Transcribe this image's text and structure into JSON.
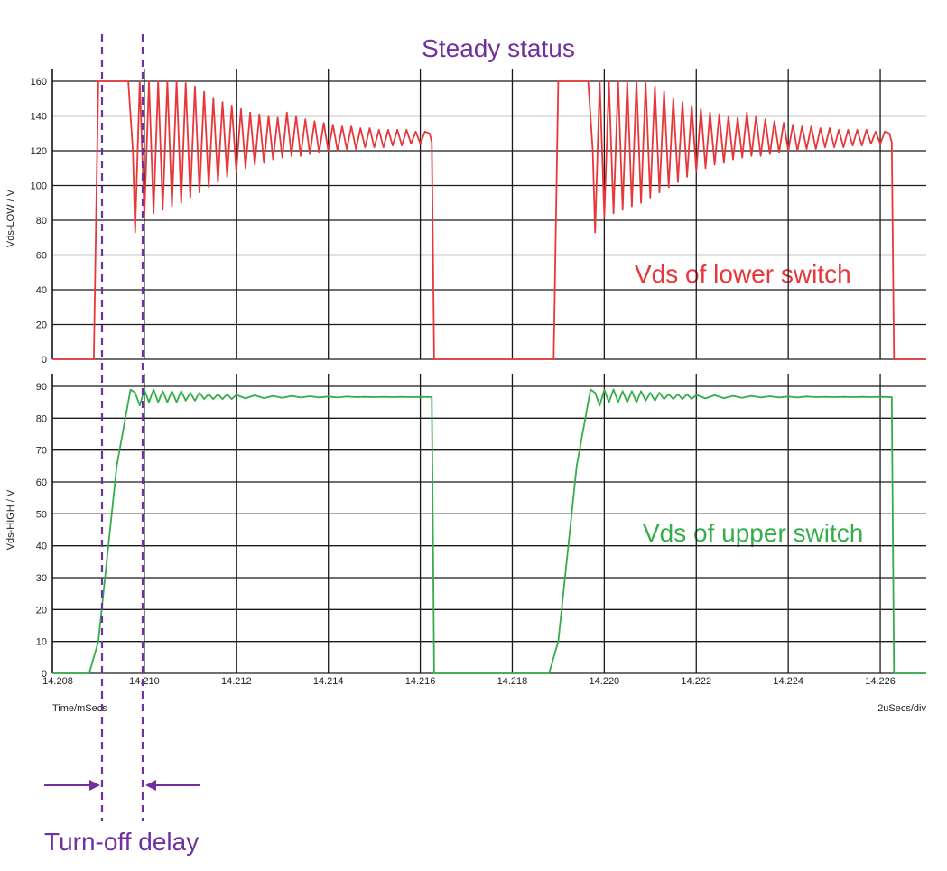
{
  "annotations": {
    "top": "Steady status",
    "bottom": "Turn-off delay",
    "lower_label": "Vds of lower switch",
    "upper_label": "Vds of upper switch"
  },
  "colors": {
    "lower": "#e8373a",
    "upper": "#34ad4a",
    "annotation": "#7030a0",
    "grid": "#1a1a1a"
  },
  "xaxis": {
    "label": "Time/mSecs",
    "right_label": "2uSecs/div",
    "range": [
      14.208,
      14.227
    ],
    "ticks": [
      "14.208",
      "14.210",
      "14.212",
      "14.214",
      "14.216",
      "14.218",
      "14.220",
      "14.222",
      "14.224",
      "14.226"
    ]
  },
  "chart_data": [
    {
      "type": "line",
      "ylabel": "Vds-LOW / V",
      "ylim": [
        0,
        165
      ],
      "yticks": [
        0,
        20,
        40,
        60,
        80,
        100,
        120,
        140,
        160
      ],
      "grid": true,
      "series": [
        {
          "name": "Vds of lower switch",
          "x": [
            14.208,
            14.2089,
            14.209,
            14.20965,
            14.20975,
            14.2098,
            14.2099,
            14.21,
            14.2101,
            14.2102,
            14.2103,
            14.2104,
            14.2105,
            14.2106,
            14.2107,
            14.2108,
            14.2109,
            14.211,
            14.2111,
            14.2112,
            14.2113,
            14.2114,
            14.2115,
            14.2116,
            14.2117,
            14.2118,
            14.2119,
            14.212,
            14.2121,
            14.2122,
            14.2123,
            14.2124,
            14.2125,
            14.2126,
            14.2127,
            14.2128,
            14.2129,
            14.213,
            14.2131,
            14.2132,
            14.2133,
            14.2134,
            14.2135,
            14.2136,
            14.2137,
            14.2138,
            14.2139,
            14.214,
            14.2141,
            14.2142,
            14.2143,
            14.2144,
            14.2145,
            14.2146,
            14.2147,
            14.2148,
            14.2149,
            14.215,
            14.2151,
            14.2152,
            14.2153,
            14.2154,
            14.2155,
            14.2156,
            14.2157,
            14.2158,
            14.2159,
            14.216,
            14.2161,
            14.2162,
            14.21625,
            14.2163,
            14.2164,
            14.2189,
            14.219,
            14.21965,
            14.21975,
            14.2198,
            14.2199,
            14.22,
            14.2201,
            14.2202,
            14.2203,
            14.2204,
            14.2205,
            14.2206,
            14.2207,
            14.2208,
            14.2209,
            14.221,
            14.2211,
            14.2212,
            14.2213,
            14.2214,
            14.2215,
            14.2216,
            14.2217,
            14.2218,
            14.2219,
            14.222,
            14.2221,
            14.2222,
            14.2223,
            14.2224,
            14.2225,
            14.2226,
            14.2227,
            14.2228,
            14.2229,
            14.223,
            14.2231,
            14.2232,
            14.2233,
            14.2234,
            14.2235,
            14.2236,
            14.2237,
            14.2238,
            14.2239,
            14.224,
            14.2241,
            14.2242,
            14.2243,
            14.2244,
            14.2245,
            14.2246,
            14.2247,
            14.2248,
            14.2249,
            14.225,
            14.2251,
            14.2252,
            14.2253,
            14.2254,
            14.2255,
            14.2256,
            14.2257,
            14.2258,
            14.2259,
            14.226,
            14.2261,
            14.2262,
            14.22625,
            14.2263,
            14.2264,
            14.227
          ],
          "y": [
            0,
            0,
            160,
            160,
            120,
            73,
            160,
            82,
            160,
            84,
            160,
            86,
            160,
            88,
            160,
            90,
            159,
            93,
            157,
            96,
            154,
            99,
            150,
            102,
            148,
            105,
            146,
            108,
            144,
            110,
            142,
            112,
            141,
            113,
            140,
            115,
            139,
            116,
            142,
            117,
            140,
            117,
            138,
            118,
            137,
            119,
            136,
            120,
            135,
            120,
            134,
            121,
            134,
            121,
            133,
            122,
            133,
            122,
            132,
            122,
            132,
            123,
            132,
            123,
            132,
            124,
            131,
            124,
            131,
            130,
            125,
            0,
            0,
            0,
            160,
            160,
            120,
            73,
            160,
            82,
            160,
            84,
            160,
            86,
            160,
            88,
            160,
            90,
            159,
            93,
            157,
            96,
            154,
            99,
            150,
            102,
            148,
            105,
            146,
            108,
            144,
            110,
            142,
            112,
            141,
            113,
            140,
            115,
            139,
            116,
            142,
            117,
            140,
            117,
            138,
            118,
            137,
            119,
            136,
            120,
            135,
            120,
            134,
            121,
            134,
            121,
            133,
            122,
            133,
            122,
            132,
            122,
            132,
            123,
            132,
            123,
            132,
            124,
            131,
            124,
            131,
            130,
            125,
            0,
            0,
            0
          ]
        }
      ]
    },
    {
      "type": "line",
      "ylabel": "Vds-HIGH / V",
      "ylim": [
        0,
        92
      ],
      "yticks": [
        0,
        10,
        20,
        30,
        40,
        50,
        60,
        70,
        80,
        90
      ],
      "grid": true,
      "series": [
        {
          "name": "Vds of upper switch",
          "x": [
            14.208,
            14.2088,
            14.209,
            14.2094,
            14.2097,
            14.2098,
            14.2099,
            14.21,
            14.2101,
            14.2102,
            14.2103,
            14.2104,
            14.2105,
            14.2106,
            14.2107,
            14.2108,
            14.2109,
            14.211,
            14.2111,
            14.2112,
            14.2113,
            14.2114,
            14.2115,
            14.2116,
            14.2117,
            14.2118,
            14.2119,
            14.212,
            14.2122,
            14.2124,
            14.2126,
            14.2128,
            14.213,
            14.2132,
            14.2134,
            14.2136,
            14.2138,
            14.214,
            14.2142,
            14.2144,
            14.2146,
            14.2148,
            14.215,
            14.2152,
            14.2154,
            14.2156,
            14.2158,
            14.216,
            14.21625,
            14.2163,
            14.2164,
            14.2188,
            14.219,
            14.2194,
            14.2197,
            14.2198,
            14.2199,
            14.22,
            14.2201,
            14.2202,
            14.2203,
            14.2204,
            14.2205,
            14.2206,
            14.2207,
            14.2208,
            14.2209,
            14.221,
            14.2211,
            14.2212,
            14.2213,
            14.2214,
            14.2215,
            14.2216,
            14.2217,
            14.2218,
            14.2219,
            14.222,
            14.2222,
            14.2224,
            14.2226,
            14.2228,
            14.223,
            14.2232,
            14.2234,
            14.2236,
            14.2238,
            14.224,
            14.2242,
            14.2244,
            14.2246,
            14.2248,
            14.225,
            14.2252,
            14.2254,
            14.2256,
            14.2258,
            14.226,
            14.22625,
            14.2263,
            14.2264,
            14.227
          ],
          "y": [
            0,
            0,
            10,
            65,
            89,
            88,
            84,
            89,
            85,
            89,
            85,
            88.5,
            85,
            88.5,
            85,
            88.5,
            85.5,
            88,
            85.5,
            88,
            86,
            87.5,
            86,
            87.5,
            86,
            87.5,
            86,
            87.3,
            86.2,
            87.2,
            86.3,
            87,
            86.4,
            87,
            86.5,
            86.9,
            86.5,
            86.8,
            86.5,
            86.8,
            86.6,
            86.7,
            86.6,
            86.7,
            86.6,
            86.7,
            86.6,
            86.7,
            86.6,
            0,
            0,
            0,
            10,
            65,
            89,
            88,
            84,
            89,
            85,
            89,
            85,
            88.5,
            85,
            88.5,
            85,
            88.5,
            85.5,
            88,
            85.5,
            88,
            86,
            87.5,
            86,
            87.5,
            86,
            87.5,
            86,
            87.3,
            86.2,
            87.2,
            86.3,
            87,
            86.4,
            87,
            86.5,
            86.9,
            86.5,
            86.8,
            86.5,
            86.8,
            86.6,
            86.7,
            86.6,
            86.7,
            86.6,
            86.7,
            86.6,
            86.7,
            86.6,
            0,
            0,
            0
          ]
        }
      ]
    }
  ]
}
